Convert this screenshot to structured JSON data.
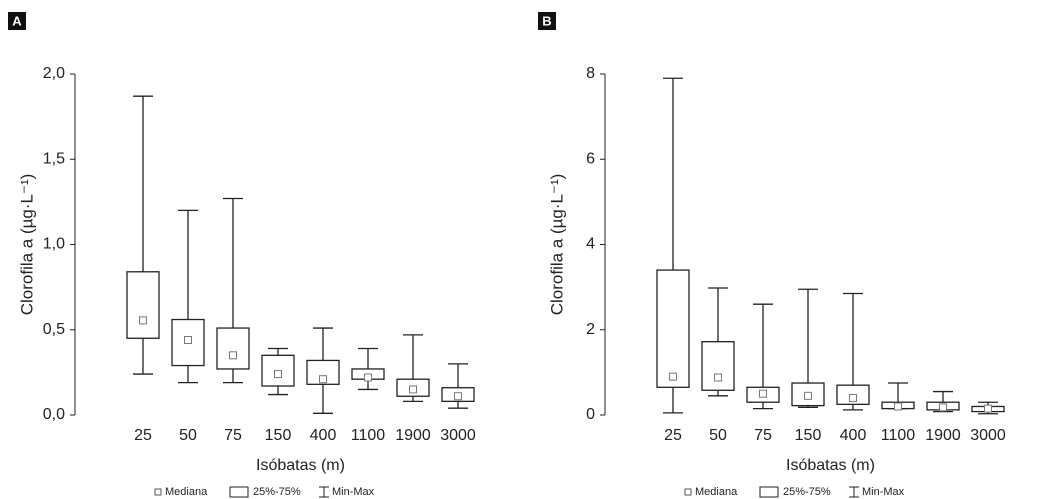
{
  "chart_data": [
    {
      "type": "box",
      "panel": "A",
      "x_label": "Isóbatas (m)",
      "y_label": "Clorofila a (µg·L⁻¹)",
      "categories": [
        "25",
        "50",
        "75",
        "150",
        "400",
        "1100",
        "1900",
        "3000"
      ],
      "min": [
        0.24,
        0.19,
        0.19,
        0.12,
        0.01,
        0.15,
        0.08,
        0.04
      ],
      "q1": [
        0.45,
        0.29,
        0.27,
        0.17,
        0.18,
        0.21,
        0.11,
        0.08
      ],
      "median": [
        0.555,
        0.44,
        0.35,
        0.24,
        0.21,
        0.22,
        0.15,
        0.11
      ],
      "q3": [
        0.84,
        0.56,
        0.51,
        0.35,
        0.32,
        0.27,
        0.21,
        0.16
      ],
      "max": [
        1.87,
        1.2,
        1.27,
        0.39,
        0.51,
        0.39,
        0.47,
        0.3
      ],
      "ylim": [
        0,
        2
      ],
      "yticks": [
        {
          "value": 0,
          "label": "0,0"
        },
        {
          "value": 0.5,
          "label": "0,5"
        },
        {
          "value": 1,
          "label": "1,0"
        },
        {
          "value": 1.5,
          "label": "1,5"
        },
        {
          "value": 2,
          "label": "2,0"
        }
      ],
      "legend": [
        "Mediana",
        "25%-75%",
        "Min-Max"
      ],
      "color": "#222222"
    },
    {
      "type": "box",
      "panel": "B",
      "x_label": "Isóbatas (m)",
      "y_label": "Clorofila a (µg·L⁻¹)",
      "categories": [
        "25",
        "50",
        "75",
        "150",
        "400",
        "1100",
        "1900",
        "3000"
      ],
      "min": [
        0.05,
        0.45,
        0.15,
        0.18,
        0.12,
        0.15,
        0.08,
        0.03
      ],
      "q1": [
        0.65,
        0.58,
        0.3,
        0.22,
        0.25,
        0.15,
        0.12,
        0.08
      ],
      "median": [
        0.9,
        0.88,
        0.5,
        0.45,
        0.4,
        0.2,
        0.18,
        0.15
      ],
      "q3": [
        3.4,
        1.72,
        0.65,
        0.75,
        0.7,
        0.3,
        0.3,
        0.2
      ],
      "max": [
        7.9,
        2.98,
        2.6,
        2.95,
        2.85,
        0.75,
        0.55,
        0.3
      ],
      "ylim": [
        0,
        8
      ],
      "yticks": [
        0,
        2,
        4,
        6,
        8
      ],
      "legend": [
        "Mediana",
        "25%-75%",
        "Min-Max"
      ],
      "color": "#222222"
    }
  ]
}
